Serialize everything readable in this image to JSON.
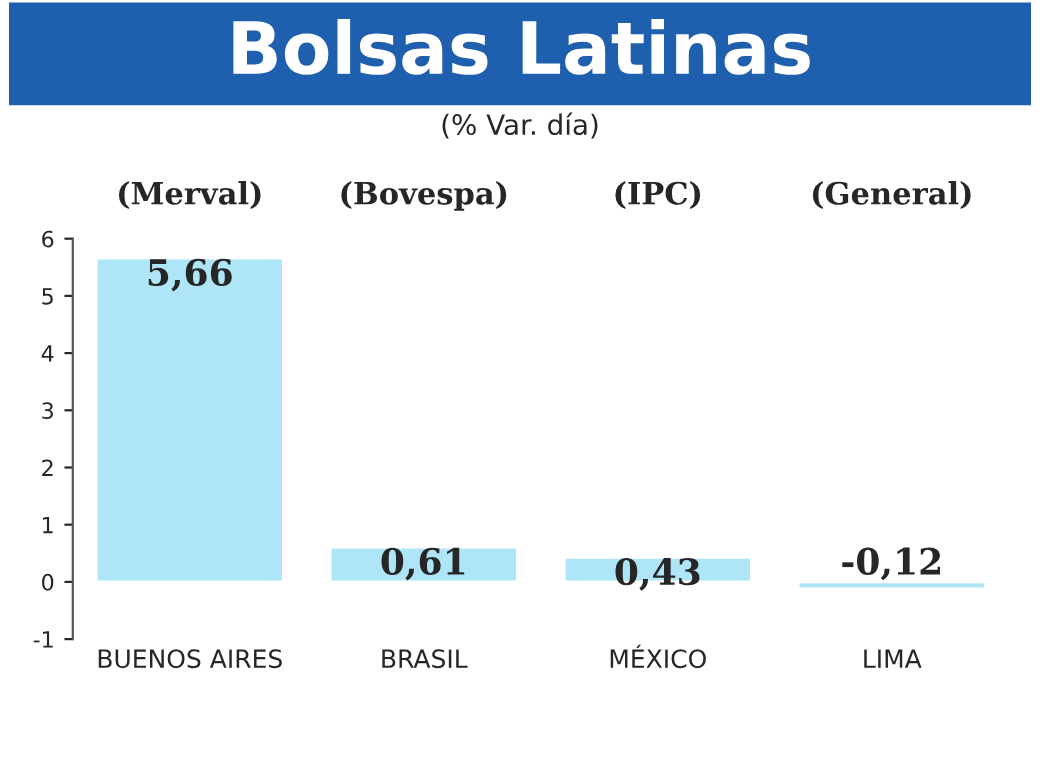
{
  "chart_data": {
    "type": "bar",
    "title": "Bolsas Latinas",
    "subtitle": "(% Var. día)",
    "categories": [
      "BUENOS AIRES",
      "BRASIL",
      "MÉXICO",
      "LIMA"
    ],
    "values": [
      5.66,
      0.61,
      0.43,
      -0.12
    ],
    "value_labels": [
      "5,66",
      "0,61",
      "0,43",
      "-0,12"
    ],
    "color": "#aee6f8",
    "ylim": [
      -1,
      6
    ],
    "yticks": [
      -1,
      0,
      1,
      2,
      3,
      4,
      5,
      6
    ],
    "grid": false,
    "annotations": [
      "(Merval)",
      "(Bovespa)",
      "(IPC)",
      "(General)"
    ]
  }
}
